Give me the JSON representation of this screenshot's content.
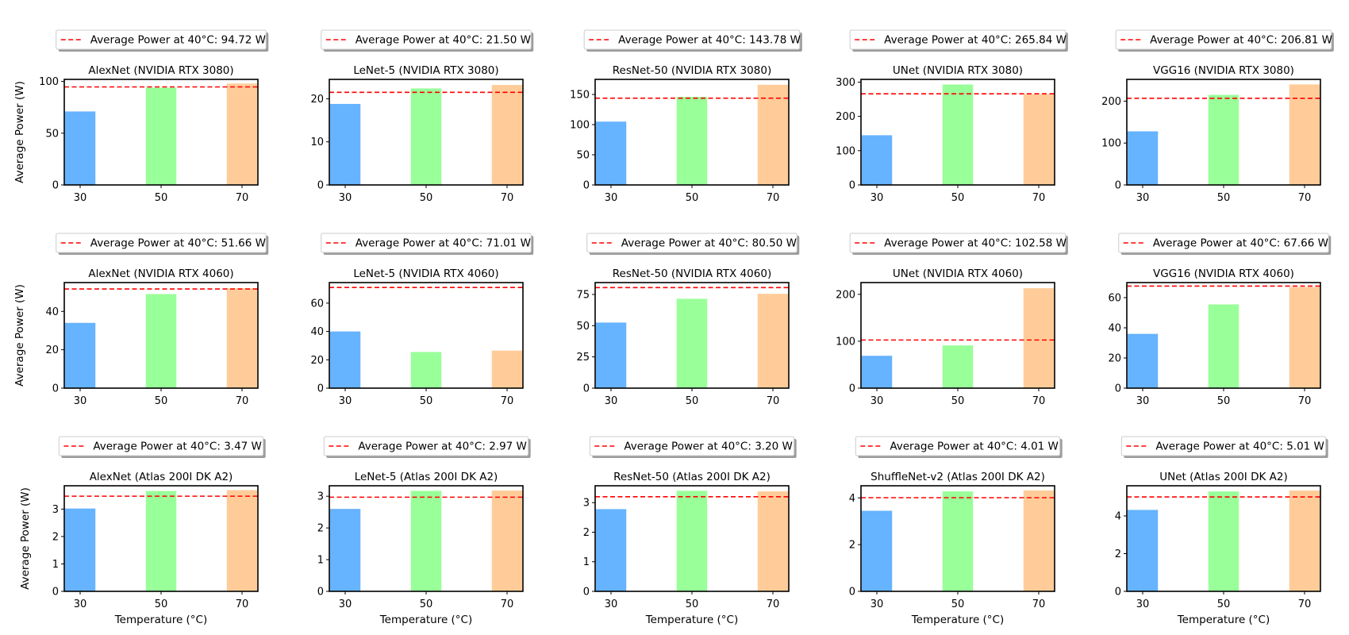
{
  "chart_data": [
    {
      "type": "bar",
      "title": "AlexNet (NVIDIA RTX 3080)",
      "categories": [
        "30",
        "50",
        "70"
      ],
      "values": [
        71,
        94,
        98
      ],
      "ylim": [
        0,
        102
      ],
      "yticks": [
        0,
        50,
        100
      ],
      "reference_value": 94.72,
      "legend": "Average Power at 40°C: 94.72 W",
      "ylabel": "Average Power (W)",
      "xlabel": ""
    },
    {
      "type": "bar",
      "title": "LeNet-5 (NVIDIA RTX 3080)",
      "categories": [
        "30",
        "50",
        "70"
      ],
      "values": [
        18.8,
        22.4,
        23.2
      ],
      "ylim": [
        0,
        24.5
      ],
      "yticks": [
        0,
        10,
        20
      ],
      "reference_value": 21.5,
      "legend": "Average Power at 40°C: 21.50 W",
      "ylabel": "",
      "xlabel": ""
    },
    {
      "type": "bar",
      "title": "ResNet-50 (NVIDIA RTX 3080)",
      "categories": [
        "30",
        "50",
        "70"
      ],
      "values": [
        105,
        146,
        166
      ],
      "ylim": [
        0,
        175
      ],
      "yticks": [
        0,
        50,
        100,
        150
      ],
      "reference_value": 143.78,
      "legend": "Average Power at 40°C: 143.78 W",
      "ylabel": "",
      "xlabel": ""
    },
    {
      "type": "bar",
      "title": "UNet (NVIDIA RTX 3080)",
      "categories": [
        "30",
        "50",
        "70"
      ],
      "values": [
        145,
        293,
        265
      ],
      "ylim": [
        0,
        308
      ],
      "yticks": [
        0,
        100,
        200,
        300
      ],
      "reference_value": 265.84,
      "legend": "Average Power at 40°C: 265.84 W",
      "ylabel": "",
      "xlabel": ""
    },
    {
      "type": "bar",
      "title": "VGG16 (NVIDIA RTX 3080)",
      "categories": [
        "30",
        "50",
        "70"
      ],
      "values": [
        128,
        215,
        240
      ],
      "ylim": [
        0,
        252
      ],
      "yticks": [
        0,
        100,
        200
      ],
      "reference_value": 206.81,
      "legend": "Average Power at 40°C: 206.81 W",
      "ylabel": "",
      "xlabel": ""
    },
    {
      "type": "bar",
      "title": "AlexNet (NVIDIA RTX 4060)",
      "categories": [
        "30",
        "50",
        "70"
      ],
      "values": [
        34,
        49,
        52
      ],
      "ylim": [
        0,
        55
      ],
      "yticks": [
        0,
        20,
        40
      ],
      "reference_value": 51.66,
      "legend": "Average Power at 40°C: 51.66 W",
      "ylabel": "Average Power (W)",
      "xlabel": ""
    },
    {
      "type": "bar",
      "title": "LeNet-5 (NVIDIA RTX 4060)",
      "categories": [
        "30",
        "50",
        "70"
      ],
      "values": [
        40,
        25.5,
        26.5
      ],
      "ylim": [
        0,
        74.5
      ],
      "yticks": [
        0,
        20,
        40,
        60
      ],
      "reference_value": 71.01,
      "legend": "Average Power at 40°C: 71.01 W",
      "ylabel": "",
      "xlabel": ""
    },
    {
      "type": "bar",
      "title": "ResNet-50 (NVIDIA RTX 4060)",
      "categories": [
        "30",
        "50",
        "70"
      ],
      "values": [
        52.5,
        71.5,
        75.5
      ],
      "ylim": [
        0,
        84.5
      ],
      "yticks": [
        0,
        25,
        50,
        75
      ],
      "reference_value": 80.5,
      "legend": "Average Power at 40°C: 80.50 W",
      "ylabel": "",
      "xlabel": ""
    },
    {
      "type": "bar",
      "title": "UNet (NVIDIA RTX 4060)",
      "categories": [
        "30",
        "50",
        "70"
      ],
      "values": [
        69,
        91,
        213
      ],
      "ylim": [
        0,
        225
      ],
      "yticks": [
        0,
        100,
        200
      ],
      "reference_value": 102.58,
      "legend": "Average Power at 40°C: 102.58 W",
      "ylabel": "",
      "xlabel": ""
    },
    {
      "type": "bar",
      "title": "VGG16 (NVIDIA RTX 4060)",
      "categories": [
        "30",
        "50",
        "70"
      ],
      "values": [
        36,
        55.5,
        67
      ],
      "ylim": [
        0,
        70
      ],
      "yticks": [
        0,
        20,
        40,
        60
      ],
      "reference_value": 67.66,
      "legend": "Average Power at 40°C: 67.66 W",
      "ylabel": "",
      "xlabel": ""
    },
    {
      "type": "bar",
      "title": "AlexNet (Atlas 200I DK A2)",
      "categories": [
        "30",
        "50",
        "70"
      ],
      "values": [
        3.02,
        3.66,
        3.69
      ],
      "ylim": [
        0,
        3.85
      ],
      "yticks": [
        0,
        1,
        2,
        3
      ],
      "reference_value": 3.47,
      "legend": "Average Power at 40°C: 3.47 W",
      "ylabel": "Average Power (W)",
      "xlabel": "Temperature (°C)"
    },
    {
      "type": "bar",
      "title": "LeNet-5 (Atlas 200I DK A2)",
      "categories": [
        "30",
        "50",
        "70"
      ],
      "values": [
        2.6,
        3.17,
        3.18
      ],
      "ylim": [
        0,
        3.33
      ],
      "yticks": [
        0,
        1,
        2,
        3
      ],
      "reference_value": 2.97,
      "legend": "Average Power at 40°C: 2.97 W",
      "ylabel": "",
      "xlabel": "Temperature (°C)"
    },
    {
      "type": "bar",
      "title": "ResNet-50 (Atlas 200I DK A2)",
      "categories": [
        "30",
        "50",
        "70"
      ],
      "values": [
        2.78,
        3.4,
        3.38
      ],
      "ylim": [
        0,
        3.57
      ],
      "yticks": [
        0,
        1,
        2,
        3
      ],
      "reference_value": 3.2,
      "legend": "Average Power at 40°C: 3.20 W",
      "ylabel": "",
      "xlabel": "Temperature (°C)"
    },
    {
      "type": "bar",
      "title": "ShuffleNet-v2 (Atlas 200I DK A2)",
      "categories": [
        "30",
        "50",
        "70"
      ],
      "values": [
        3.45,
        4.28,
        4.32
      ],
      "ylim": [
        0,
        4.52
      ],
      "yticks": [
        0,
        2,
        4
      ],
      "reference_value": 4.01,
      "legend": "Average Power at 40°C: 4.01 W",
      "ylabel": "",
      "xlabel": "Temperature (°C)"
    },
    {
      "type": "bar",
      "title": "UNet (Atlas 200I DK A2)",
      "categories": [
        "30",
        "50",
        "70"
      ],
      "values": [
        4.32,
        5.3,
        5.35
      ],
      "ylim": [
        0,
        5.6
      ],
      "yticks": [
        0,
        2,
        4
      ],
      "reference_value": 5.01,
      "legend": "Average Power at 40°C: 5.01 W",
      "ylabel": "",
      "xlabel": "Temperature (°C)"
    }
  ],
  "colors": {
    "bar_30": "#66b3ff",
    "bar_50": "#99ff99",
    "bar_70": "#ffcc99",
    "reference_line": "#ff0000"
  }
}
